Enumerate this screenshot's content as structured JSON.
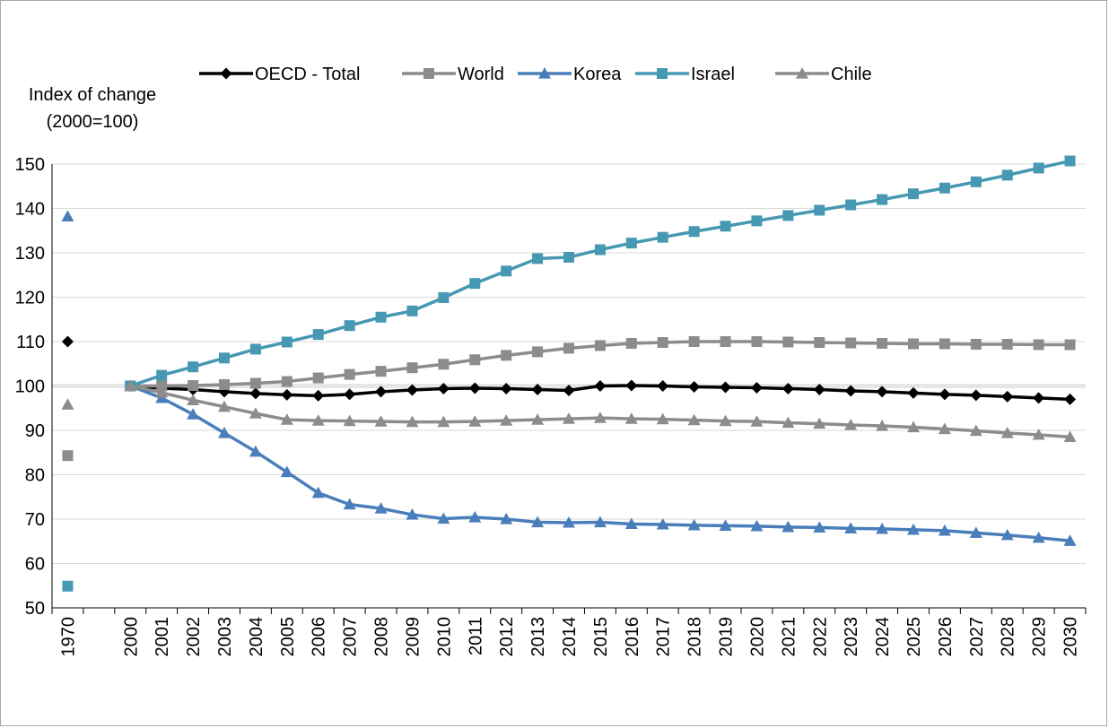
{
  "chart_data": {
    "type": "line",
    "title": "",
    "ylabel_lines": [
      "Index of change",
      "(2000=100)"
    ],
    "xlabel": "",
    "ylim": [
      50,
      150
    ],
    "yticks": [
      50,
      60,
      70,
      80,
      90,
      100,
      110,
      120,
      130,
      140,
      150
    ],
    "grid": true,
    "legend_placement": "top",
    "reference_line": 100,
    "categories": [
      "1970",
      "",
      "2000",
      "2001",
      "2002",
      "2003",
      "2004",
      "2005",
      "2006",
      "2007",
      "2008",
      "2009",
      "2010",
      "2011",
      "2012",
      "2013",
      "2014",
      "2015",
      "2016",
      "2017",
      "2018",
      "2019",
      "2020",
      "2021",
      "2022",
      "2023",
      "2024",
      "2025",
      "2026",
      "2027",
      "2028",
      "2029",
      "2030"
    ],
    "series": [
      {
        "name": "OECD - Total",
        "color": "#000000",
        "marker": "diamond",
        "values": [
          110,
          null,
          100,
          99.5,
          99.2,
          98.7,
          98.3,
          98.0,
          97.8,
          98.1,
          98.7,
          99.1,
          99.4,
          99.5,
          99.4,
          99.2,
          99.0,
          100.0,
          100.1,
          100.0,
          99.8,
          99.7,
          99.6,
          99.4,
          99.2,
          98.9,
          98.7,
          98.4,
          98.1,
          97.9,
          97.6,
          97.3,
          97.0
        ]
      },
      {
        "name": "World",
        "color": "#8c8c8c",
        "marker": "square",
        "values": [
          84.3,
          null,
          100,
          100.0,
          100.1,
          100.3,
          100.6,
          101.0,
          101.8,
          102.6,
          103.3,
          104.1,
          104.9,
          105.9,
          106.9,
          107.7,
          108.5,
          109.1,
          109.6,
          109.8,
          110.0,
          110.0,
          110.0,
          109.9,
          109.8,
          109.7,
          109.6,
          109.5,
          109.5,
          109.4,
          109.4,
          109.3,
          109.3
        ]
      },
      {
        "name": "Korea",
        "color": "#4a7ebb",
        "marker": "triangle",
        "values": [
          138.2,
          null,
          100,
          97.3,
          93.6,
          89.4,
          85.2,
          80.6,
          75.9,
          73.3,
          72.4,
          71.0,
          70.1,
          70.4,
          70.0,
          69.3,
          69.2,
          69.3,
          68.9,
          68.8,
          68.6,
          68.5,
          68.4,
          68.2,
          68.1,
          67.9,
          67.8,
          67.6,
          67.4,
          66.9,
          66.4,
          65.8,
          65.1
        ]
      },
      {
        "name": "Israel",
        "color": "#4698b3",
        "marker": "square",
        "values": [
          54.9,
          null,
          100,
          102.4,
          104.3,
          106.3,
          108.3,
          109.9,
          111.6,
          113.6,
          115.5,
          116.9,
          119.9,
          123.1,
          125.9,
          128.7,
          129.0,
          130.7,
          132.2,
          133.5,
          134.8,
          136.0,
          137.2,
          138.4,
          139.6,
          140.8,
          142.0,
          143.3,
          144.6,
          146.0,
          147.5,
          149.1,
          150.7
        ]
      },
      {
        "name": "Chile",
        "color": "#8c8c8c",
        "marker": "triangle",
        "values": [
          95.8,
          null,
          100,
          98.5,
          96.8,
          95.3,
          93.8,
          92.4,
          92.2,
          92.1,
          92.0,
          91.9,
          91.9,
          92.0,
          92.2,
          92.4,
          92.6,
          92.8,
          92.6,
          92.5,
          92.3,
          92.1,
          92.0,
          91.7,
          91.5,
          91.2,
          91.0,
          90.7,
          90.3,
          89.9,
          89.4,
          89.0,
          88.5
        ]
      }
    ]
  }
}
